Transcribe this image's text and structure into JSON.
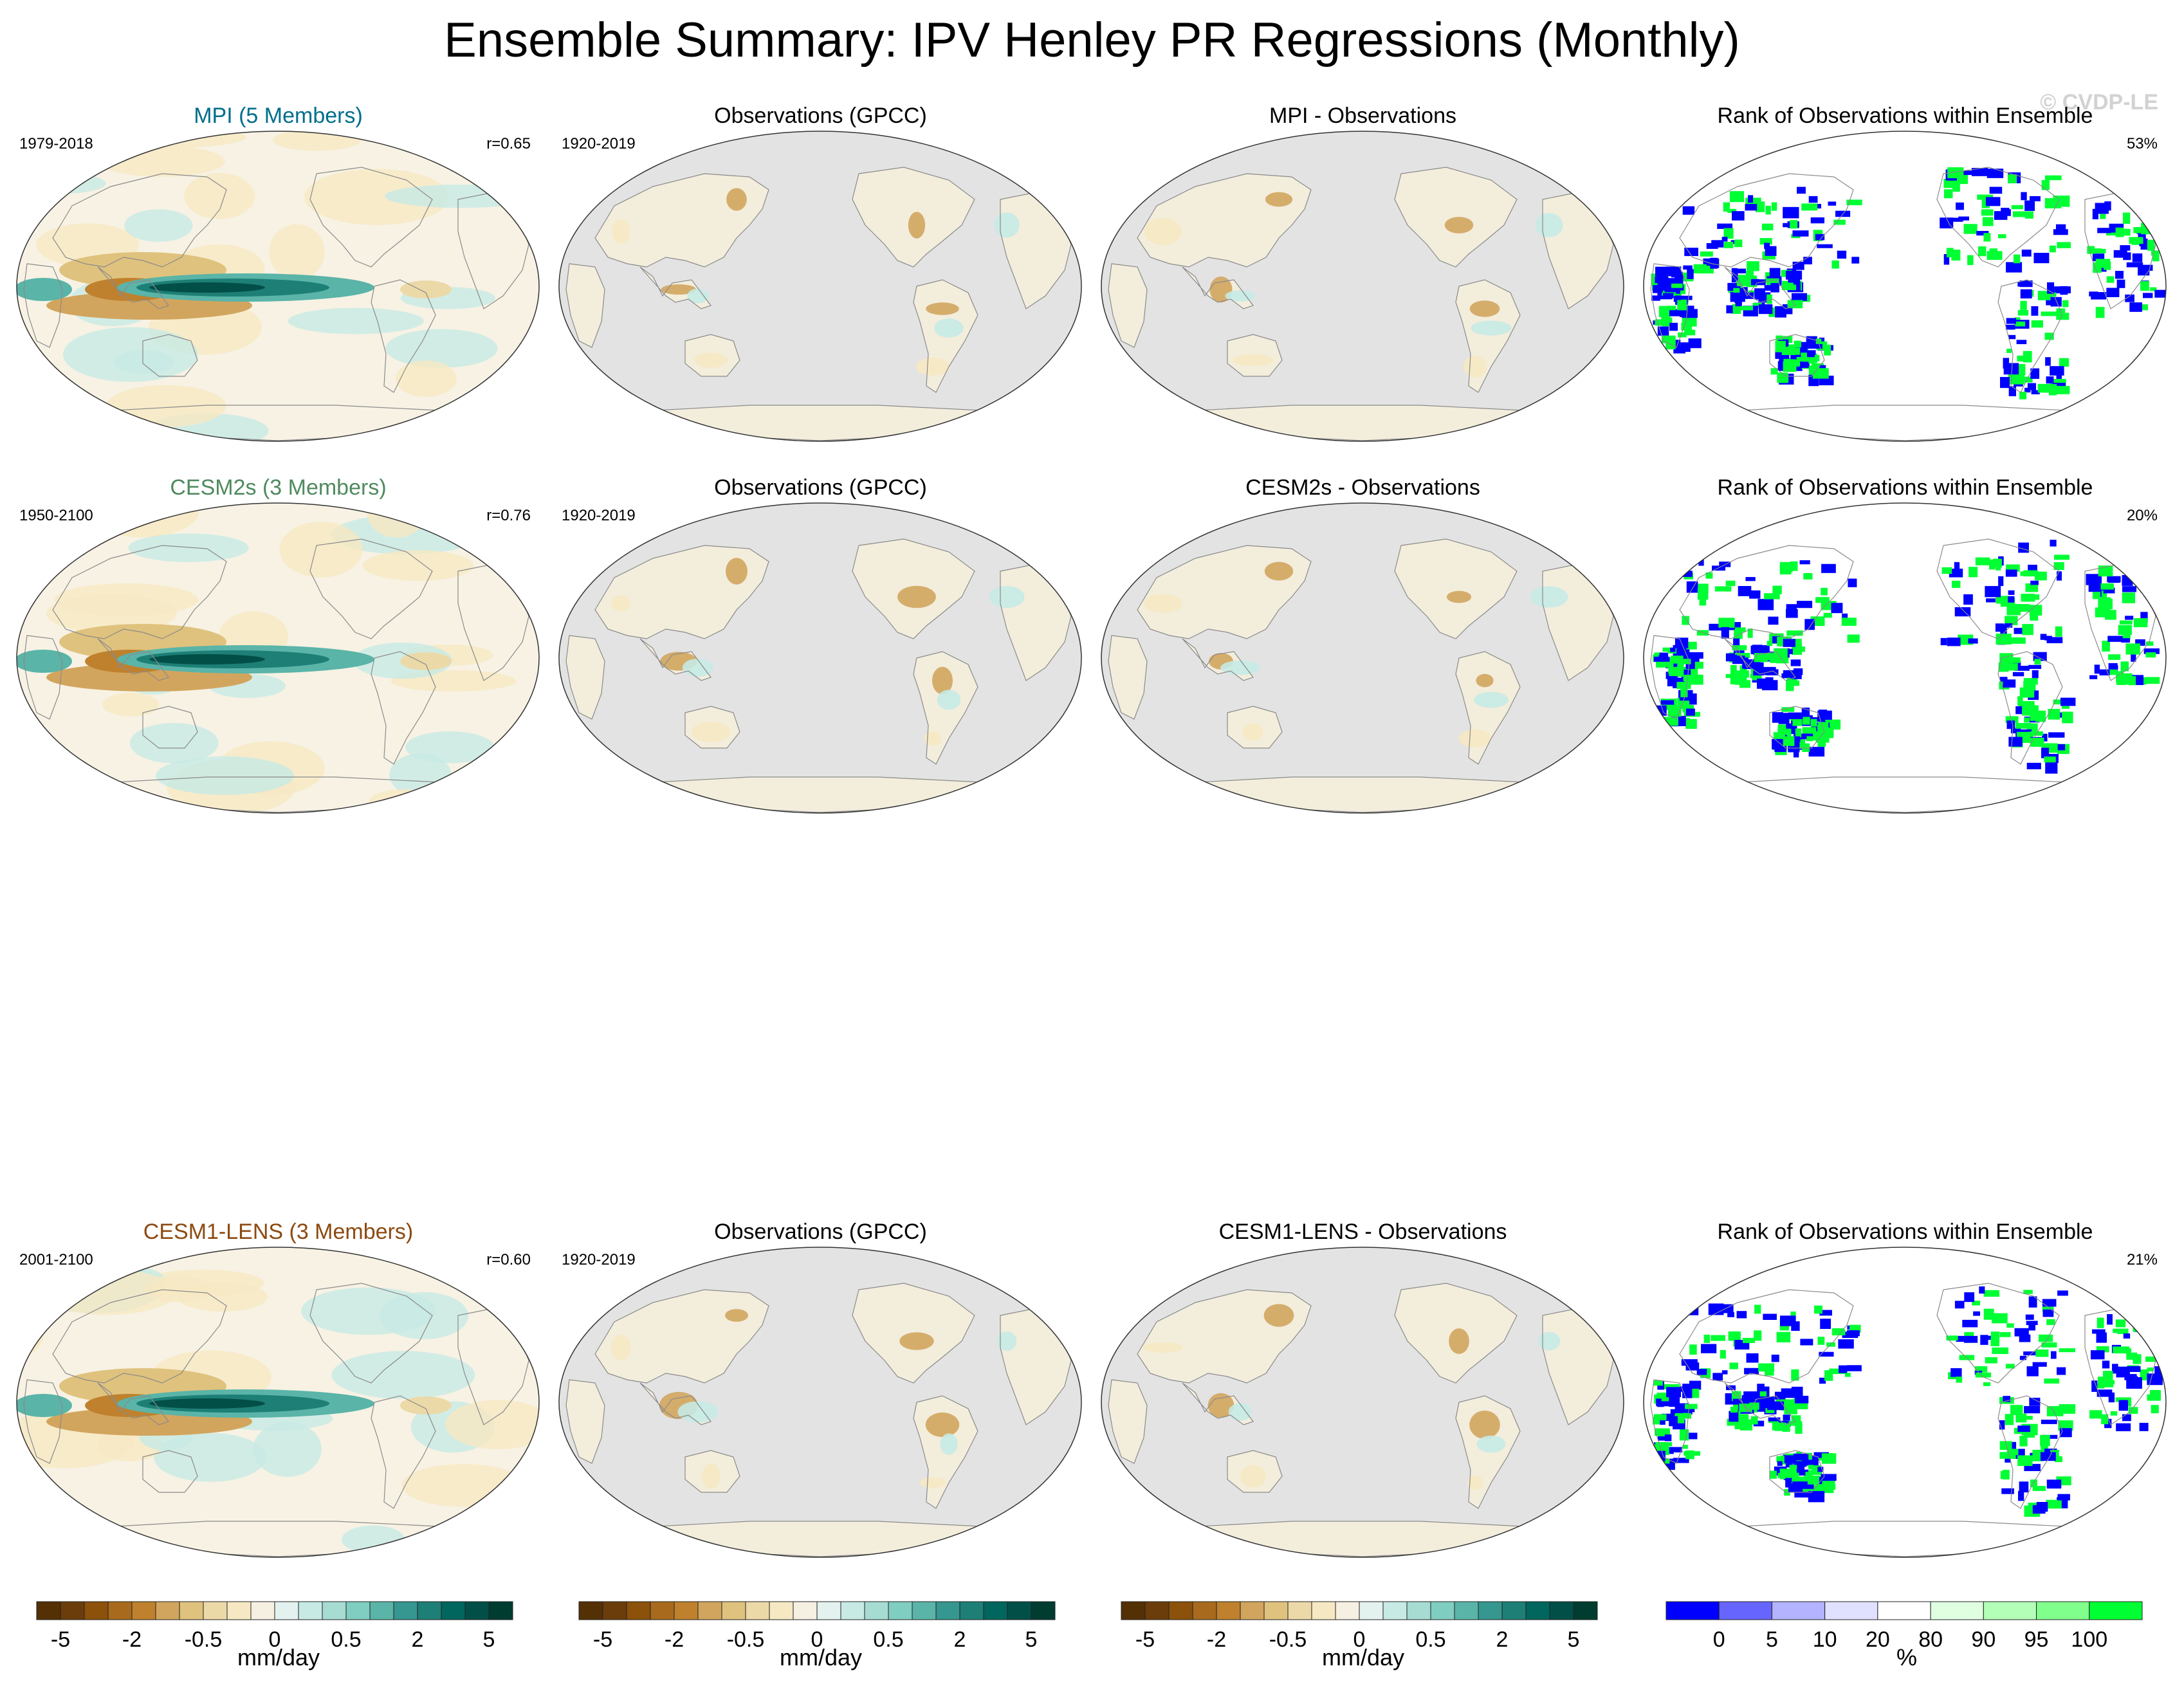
{
  "title": "Ensemble Summary: IPV Henley PR Regressions (Monthly)",
  "watermark": "© CVDP-LE",
  "colors": {
    "ocean_gray": "#e3e3e3",
    "brown_strong": "#a5611c",
    "brown_light": "#f3e6c5",
    "teal_strong": "#1a7a6c",
    "teal_light": "#d3efe9",
    "rank_blue": "#0000ff",
    "rank_green": "#00ff33",
    "mpi_title": "#006e8c",
    "cesm2_title": "#4f8a5f",
    "cesm1_title": "#8c4a10"
  },
  "rows": [
    {
      "model": {
        "title": "MPI (5 Members)",
        "years": "1979-2018",
        "corr": "r=0.65",
        "color_key": "mpi_title"
      },
      "obs": {
        "title": "Observations (GPCC)",
        "years": "1920-2019"
      },
      "diff": {
        "title": "MPI - Observations"
      },
      "rank": {
        "title": "Rank of Observations within Ensemble",
        "percent": "53%"
      }
    },
    {
      "model": {
        "title": "CESM2s (3 Members)",
        "years": "1950-2100",
        "corr": "r=0.76",
        "color_key": "cesm2_title"
      },
      "obs": {
        "title": "Observations (GPCC)",
        "years": "1920-2019"
      },
      "diff": {
        "title": "CESM2s - Observations"
      },
      "rank": {
        "title": "Rank of Observations within Ensemble",
        "percent": "20%"
      }
    },
    {
      "model": {
        "title": "CESM1-LENS (3 Members)",
        "years": "2001-2100",
        "corr": "r=0.60",
        "color_key": "cesm1_title"
      },
      "obs": {
        "title": "Observations (GPCC)",
        "years": "1920-2019"
      },
      "diff": {
        "title": "CESM1-LENS - Observations"
      },
      "rank": {
        "title": "Rank of Observations within Ensemble",
        "percent": "21%"
      }
    }
  ],
  "colorbars": {
    "pr": {
      "unit": "mm/day",
      "tick_labels": [
        "-5",
        "-2",
        "-0.5",
        "0",
        "0.5",
        "2",
        "5"
      ],
      "swatches": [
        "#543005",
        "#6b3d0b",
        "#8c510a",
        "#a86a1d",
        "#bf812d",
        "#d2a55e",
        "#dfc27d",
        "#ecd9a8",
        "#f6e8c3",
        "#f5f0e1",
        "#e3f2ef",
        "#c7eae5",
        "#a6dcd2",
        "#80cdc1",
        "#5ab4a8",
        "#35978f",
        "#1d7f76",
        "#01665e",
        "#024f48",
        "#003c30"
      ]
    },
    "rank": {
      "unit": "%",
      "tick_labels": [
        "0",
        "5",
        "10",
        "20",
        "80",
        "90",
        "95",
        "100"
      ],
      "swatches": [
        "#0000ff",
        "#6666ff",
        "#b3b3ff",
        "#e0e0ff",
        "#ffffff",
        "#e0ffe0",
        "#b3ffb8",
        "#80ff8c",
        "#00ff33"
      ]
    }
  }
}
